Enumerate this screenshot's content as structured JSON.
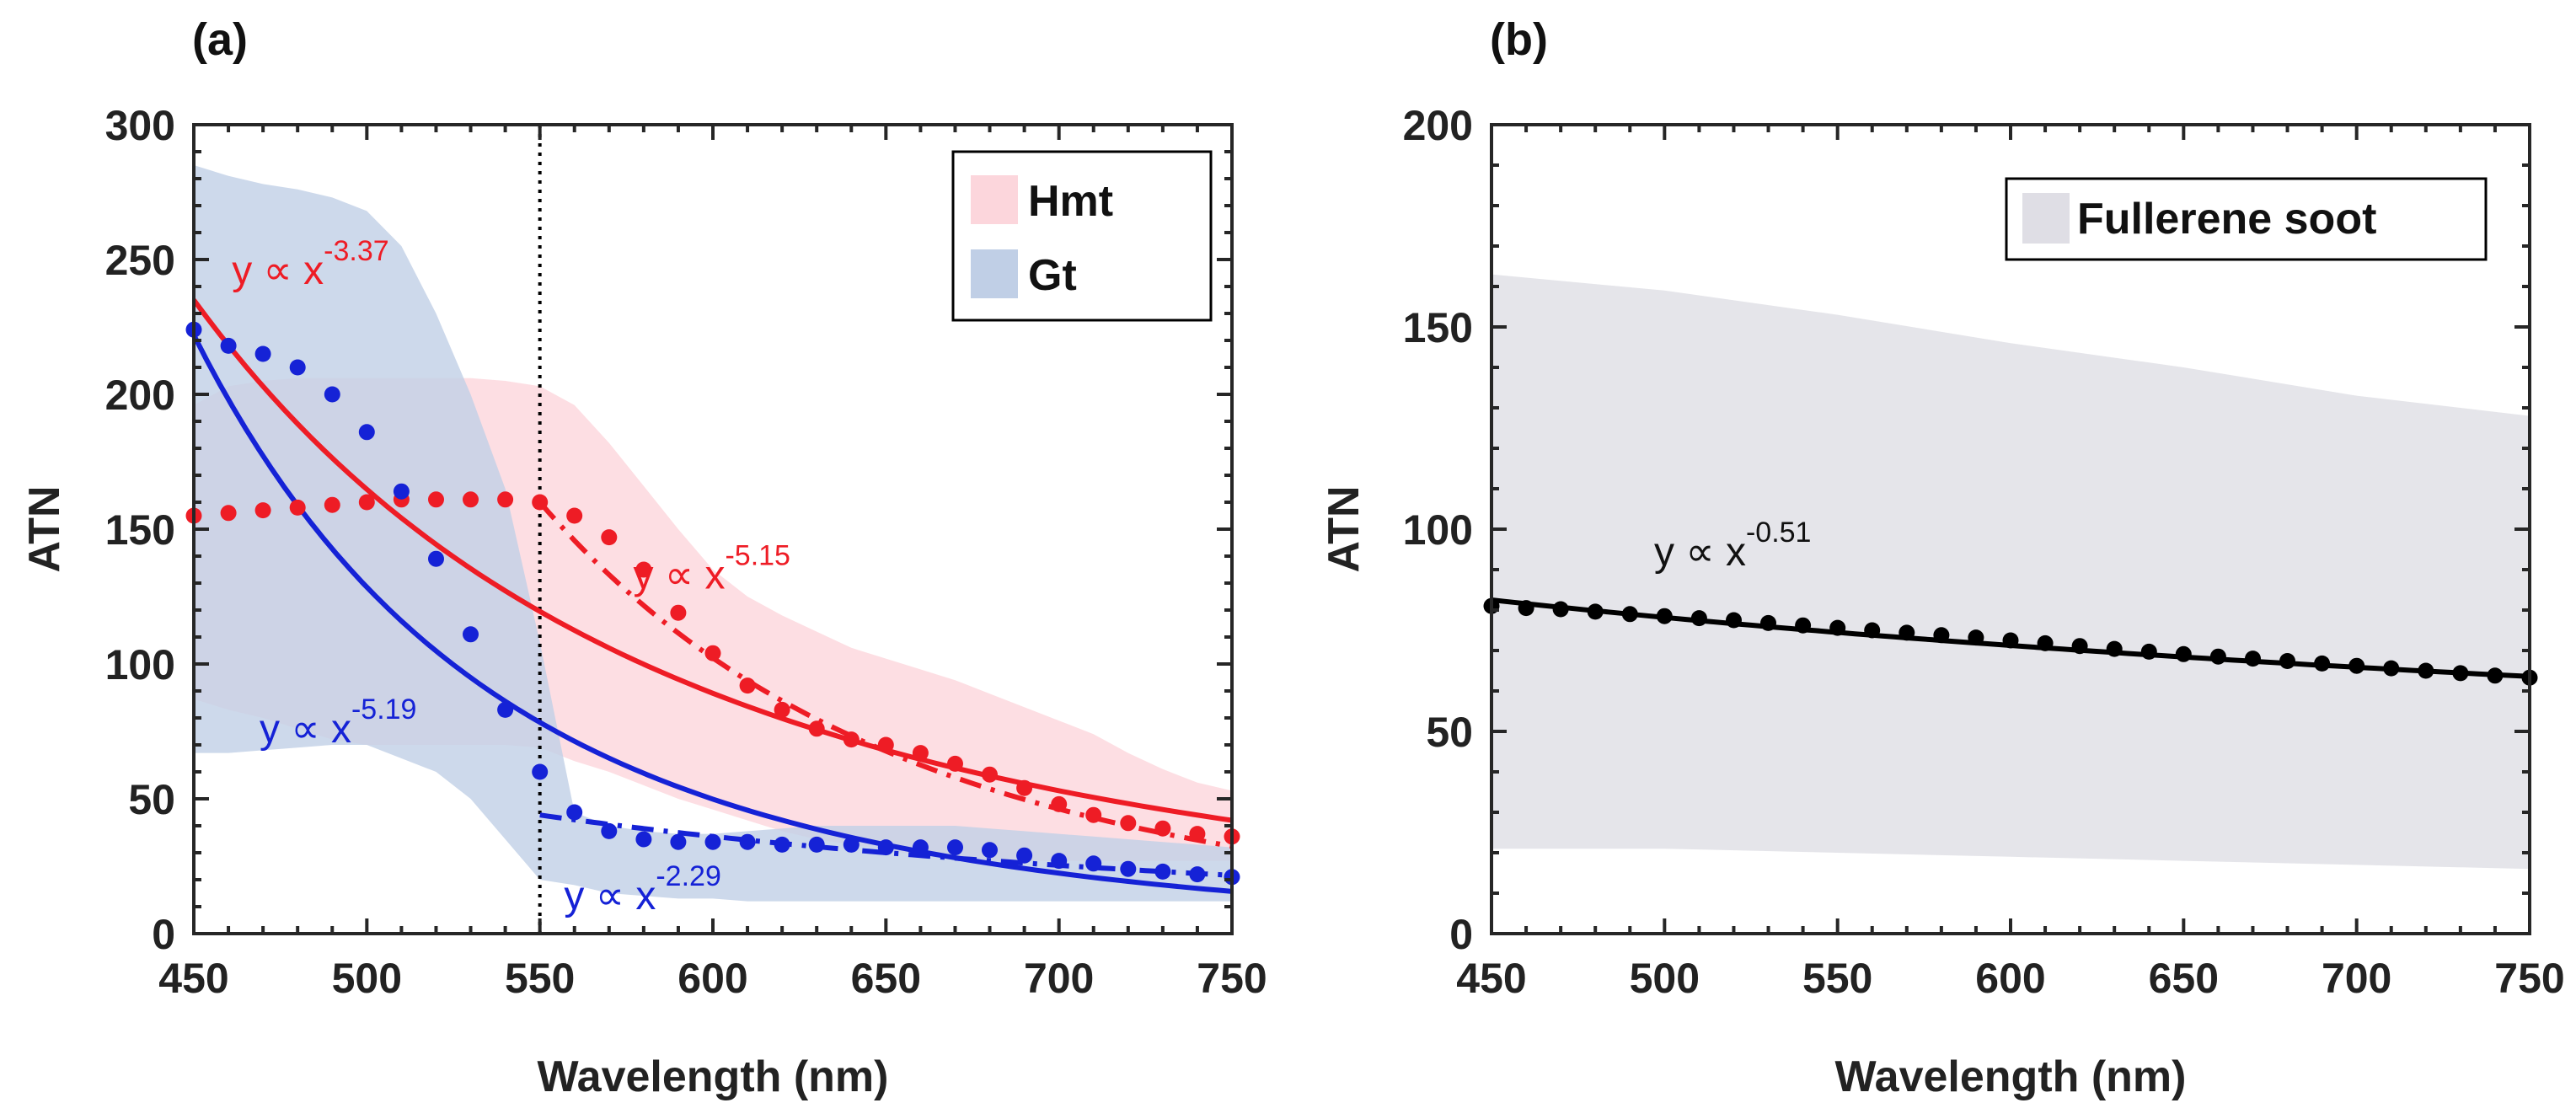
{
  "chart_data": [
    {
      "type": "line",
      "panel_label": "(a)",
      "xlabel": "Wavelength (nm)",
      "ylabel": "ATN",
      "xlim": [
        450,
        750
      ],
      "ylim": [
        0,
        300
      ],
      "xticks": [
        "450",
        "500",
        "550",
        "600",
        "650",
        "700",
        "750"
      ],
      "yticks": [
        "0",
        "50",
        "100",
        "150",
        "200",
        "250",
        "300"
      ],
      "xtick_values": [
        450,
        500,
        550,
        600,
        650,
        700,
        750
      ],
      "ytick_values": [
        0,
        50,
        100,
        150,
        200,
        250,
        300
      ],
      "vline_x": 550,
      "legend": [
        {
          "label": "Hmt",
          "color": "#fcd6dc"
        },
        {
          "label": "Gt",
          "color": "#c0cfe6"
        }
      ],
      "bands": [
        {
          "name": "Hmt",
          "color": "#fcd6dc",
          "x": [
            450,
            460,
            470,
            480,
            490,
            500,
            510,
            520,
            530,
            540,
            550,
            560,
            570,
            580,
            590,
            600,
            610,
            620,
            630,
            640,
            650,
            660,
            670,
            680,
            690,
            700,
            710,
            720,
            730,
            740,
            750
          ],
          "upper": [
            196,
            203,
            205,
            206,
            206,
            206,
            206,
            206,
            206,
            205,
            203,
            196,
            182,
            166,
            150,
            135,
            125,
            118,
            112,
            106,
            102,
            98,
            94,
            89,
            84,
            79,
            74,
            67,
            61,
            56,
            53
          ],
          "lower": [
            87,
            83,
            80,
            76,
            72,
            70,
            70,
            70,
            70,
            70,
            69,
            64,
            60,
            55,
            50,
            46,
            42,
            38,
            35,
            33,
            31,
            29,
            28,
            27,
            27,
            27,
            27,
            27,
            27,
            27,
            27
          ]
        },
        {
          "name": "Gt",
          "color": "#c0cfe6",
          "x": [
            450,
            460,
            470,
            480,
            490,
            500,
            510,
            520,
            530,
            540,
            550,
            560,
            570,
            580,
            590,
            600,
            610,
            620,
            630,
            640,
            650,
            660,
            670,
            680,
            690,
            700,
            710,
            720,
            730,
            740,
            750
          ],
          "upper": [
            285,
            281,
            278,
            276,
            273,
            268,
            255,
            230,
            200,
            165,
            108,
            45,
            40,
            38,
            37,
            37,
            38,
            39,
            40,
            40,
            40,
            40,
            40,
            39,
            38,
            37,
            36,
            35,
            34,
            33,
            32
          ],
          "lower": [
            67,
            67,
            68,
            69,
            70,
            70,
            65,
            60,
            50,
            35,
            20,
            18,
            15,
            14,
            13,
            13,
            12,
            12,
            12,
            12,
            12,
            12,
            12,
            12,
            12,
            12,
            12,
            12,
            12,
            12,
            12
          ]
        }
      ],
      "fits": [
        {
          "name": "Hmt power-law fit",
          "color": "#ee1c25",
          "style": "solid",
          "a": 235,
          "n": -3.37,
          "x_start": 450,
          "x_end": 750
        },
        {
          "name": "Gt power-law fit",
          "color": "#1522d6",
          "style": "solid",
          "a": 222,
          "n": -5.19,
          "x_start": 450,
          "x_end": 750
        },
        {
          "name": "Hmt fit >550 nm",
          "color": "#ee1c25",
          "style": "dashdot",
          "a": 160,
          "n": -5.15,
          "x_start": 550,
          "x_end": 750
        },
        {
          "name": "Gt fit >550 nm",
          "color": "#1522d6",
          "style": "dashdot",
          "a": 44,
          "n": -2.29,
          "x_start": 550,
          "x_end": 750
        }
      ],
      "series": [
        {
          "name": "Hmt",
          "color": "#ee1c25",
          "x": [
            450,
            460,
            470,
            480,
            490,
            500,
            510,
            520,
            530,
            540,
            550,
            560,
            570,
            580,
            590,
            600,
            610,
            620,
            630,
            640,
            650,
            660,
            670,
            680,
            690,
            700,
            710,
            720,
            730,
            740,
            750
          ],
          "values": [
            155,
            156,
            157,
            158,
            159,
            160,
            161,
            161,
            161,
            161,
            160,
            155,
            147,
            135,
            119,
            104,
            92,
            83,
            76,
            72,
            70,
            67,
            63,
            59,
            54,
            48,
            44,
            41,
            39,
            37,
            36
          ]
        },
        {
          "name": "Gt",
          "color": "#1522d6",
          "x": [
            450,
            460,
            470,
            480,
            490,
            500,
            510,
            520,
            530,
            540,
            550,
            560,
            570,
            580,
            590,
            600,
            610,
            620,
            630,
            640,
            650,
            660,
            670,
            680,
            690,
            700,
            710,
            720,
            730,
            740,
            750
          ],
          "values": [
            224,
            218,
            215,
            210,
            200,
            186,
            164,
            139,
            111,
            83,
            60,
            45,
            38,
            35,
            34,
            34,
            34,
            33,
            33,
            33,
            32,
            32,
            32,
            31,
            29,
            27,
            26,
            24,
            23,
            22,
            21
          ]
        }
      ],
      "annotations": [
        {
          "base": "y ∝ x",
          "exp": "-3.37",
          "color": "#ee1c25",
          "x": 461,
          "y": 241
        },
        {
          "base": "y ∝ x",
          "exp": "-5.15",
          "color": "#ee1c25",
          "x": 577,
          "y": 128
        },
        {
          "base": "y ∝ x",
          "exp": "-5.19",
          "color": "#1522d6",
          "x": 469,
          "y": 71
        },
        {
          "base": "y ∝ x",
          "exp": "-2.29",
          "color": "#1522d6",
          "x": 557,
          "y": 9
        }
      ]
    },
    {
      "type": "line",
      "panel_label": "(b)",
      "xlabel": "Wavelength (nm)",
      "ylabel": "ATN",
      "xlim": [
        450,
        750
      ],
      "ylim": [
        0,
        200
      ],
      "xticks": [
        "450",
        "500",
        "550",
        "600",
        "650",
        "700",
        "750"
      ],
      "yticks": [
        "0",
        "50",
        "100",
        "150",
        "200"
      ],
      "xtick_values": [
        450,
        500,
        550,
        600,
        650,
        700,
        750
      ],
      "ytick_values": [
        0,
        50,
        100,
        150,
        200
      ],
      "legend": [
        {
          "label": "Fullerene soot",
          "color": "#dfdee5"
        }
      ],
      "bands": [
        {
          "name": "Fullerene soot",
          "color": "#dfdee5",
          "x": [
            450,
            500,
            550,
            600,
            650,
            700,
            750
          ],
          "upper": [
            163,
            159,
            153,
            146,
            140,
            133,
            128
          ],
          "lower": [
            21,
            21,
            20,
            19,
            18,
            17,
            16
          ]
        }
      ],
      "fits": [
        {
          "name": "Fullerene soot power-law fit",
          "color": "#000000",
          "style": "solid",
          "a": 82.5,
          "n": -0.51,
          "x_start": 450,
          "x_end": 750
        }
      ],
      "series": [
        {
          "name": "Fullerene soot",
          "color": "#000000",
          "x": [
            450,
            460,
            470,
            480,
            490,
            500,
            510,
            520,
            530,
            540,
            550,
            560,
            570,
            580,
            590,
            600,
            610,
            620,
            630,
            640,
            650,
            660,
            670,
            680,
            690,
            700,
            710,
            720,
            730,
            740,
            750
          ],
          "values": [
            81,
            80.5,
            80.2,
            79.6,
            79,
            78.5,
            78,
            77.5,
            76.8,
            76.2,
            75.6,
            75,
            74.4,
            73.8,
            73.2,
            72.5,
            71.8,
            71.1,
            70.4,
            69.7,
            69.1,
            68.5,
            68,
            67.4,
            66.8,
            66.2,
            65.6,
            65,
            64.4,
            63.8,
            63.3
          ]
        }
      ],
      "annotations": [
        {
          "base": "y ∝ x",
          "exp": "-0.51",
          "color": "#111111",
          "x": 497,
          "y": 91
        }
      ]
    }
  ]
}
